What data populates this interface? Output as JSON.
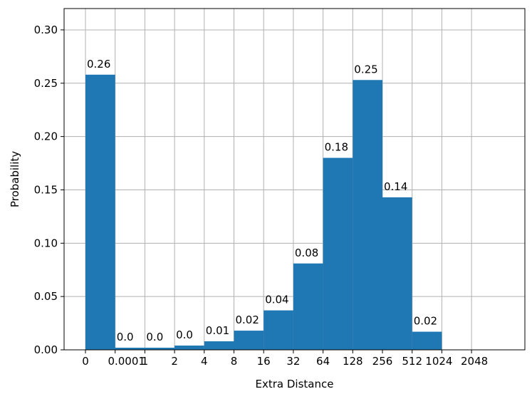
{
  "chart_data": {
    "type": "bar",
    "xlabel": "Extra Distance",
    "ylabel": "Probability",
    "ylim": [
      0,
      0.32
    ],
    "grid": true,
    "bar_color": "#1f77b4",
    "x_tick_labels": [
      "0",
      "0.0001",
      "1",
      "2",
      "4",
      "8",
      "16",
      "32",
      "64",
      "128",
      "256",
      "512",
      "1024",
      "2048"
    ],
    "y_tick_labels": [
      "0.00",
      "0.05",
      "0.10",
      "0.15",
      "0.20",
      "0.25",
      "0.30"
    ],
    "y_ticks": [
      0.0,
      0.05,
      0.1,
      0.15,
      0.2,
      0.25,
      0.3
    ],
    "values": [
      0.258,
      0.002,
      0.002,
      0.004,
      0.008,
      0.018,
      0.037,
      0.081,
      0.18,
      0.253,
      0.143,
      0.017
    ],
    "data_labels": [
      "0.26",
      "0.0",
      "0.0",
      "0.0",
      "0.01",
      "0.02",
      "0.04",
      "0.08",
      "0.18",
      "0.25",
      "0.14",
      "0.02"
    ]
  }
}
